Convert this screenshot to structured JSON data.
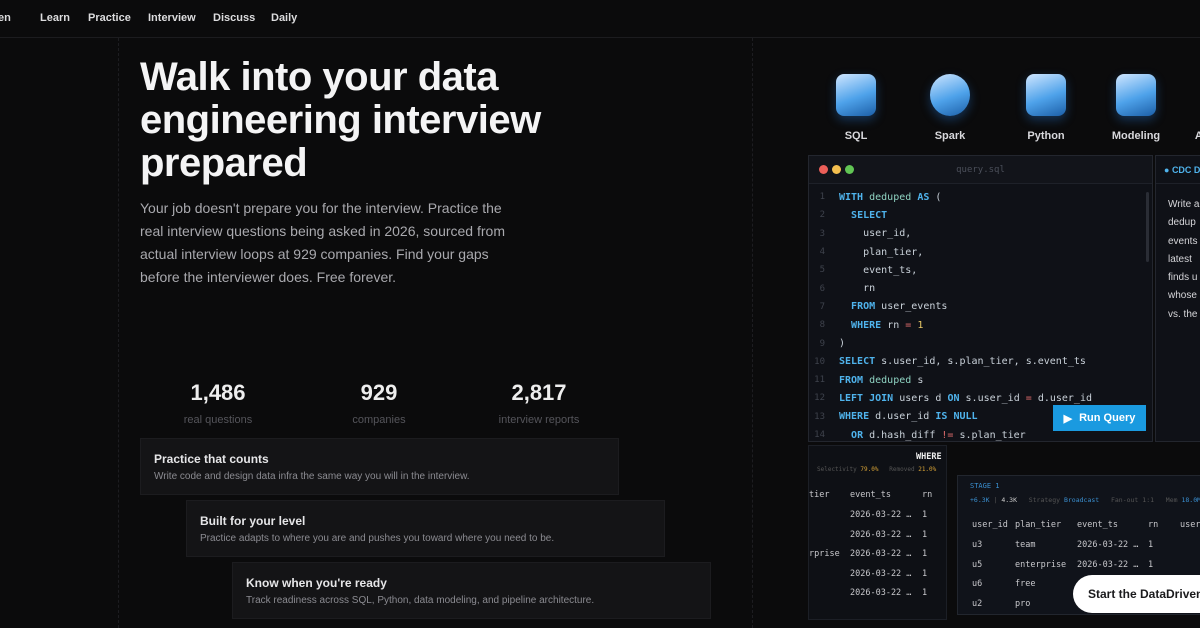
{
  "nav": {
    "brand_partial": "en",
    "items": [
      "Learn",
      "Practice",
      "Interview",
      "Discuss",
      "Daily"
    ]
  },
  "hero": {
    "title_lines": [
      "Walk into your data",
      "engineering interview",
      "prepared"
    ],
    "lead": "Your job doesn't prepare you for the interview. Practice the real interview questions being asked in 2026, sourced from actual interview loops at 929 companies. Find your gaps before the interviewer does. Free forever."
  },
  "stats": [
    {
      "value": "1,486",
      "label": "real questions"
    },
    {
      "value": "929",
      "label": "companies"
    },
    {
      "value": "2,817",
      "label": "interview reports"
    }
  ],
  "features": [
    {
      "title": "Practice that counts",
      "desc": "Write code and design data infra the same way you will in the interview."
    },
    {
      "title": "Built for your level",
      "desc": "Practice adapts to where you are and pushes you toward where you need to be."
    },
    {
      "title": "Know when you're ready",
      "desc": "Track readiness across SQL, Python, data modeling, and pipeline architecture."
    }
  ],
  "topics": [
    {
      "label": "SQL",
      "icon": "database-icon"
    },
    {
      "label": "Spark",
      "icon": "spark-icon"
    },
    {
      "label": "Python",
      "icon": "python-icon"
    },
    {
      "label": "Modeling",
      "icon": "modeling-icon"
    },
    {
      "label": "Ar",
      "icon": "architecture-icon"
    }
  ],
  "editor": {
    "filename": "query.sql",
    "run_label": "Run Query",
    "colors": {
      "close": "#ec5f59",
      "min": "#f4bf4f",
      "max": "#61c554",
      "accent": "#1a9ae0"
    },
    "lines": [
      "WITH deduped AS (",
      "  SELECT",
      "    user_id,",
      "    plan_tier,",
      "    event_ts,",
      "    rn",
      "  FROM user_events",
      "  WHERE rn = 1",
      ")",
      "SELECT s.user_id, s.plan_tier, s.event_ts",
      "FROM deduped s",
      "LEFT JOIN users d ON s.user_id = d.user_id",
      "WHERE d.user_id IS NULL",
      "  OR d.hash_diff != s.plan_tier"
    ]
  },
  "side_panel": {
    "title": "CDC D",
    "lines": [
      "Write a",
      "dedup",
      "events",
      "latest",
      "finds u",
      "whose",
      "vs. the"
    ]
  },
  "where_panel": {
    "title": "WHERE",
    "selectivity_label": "Selectivity",
    "selectivity": "79.0%",
    "removed_label": "Removed",
    "removed": "21.0%",
    "headers": [
      "tier",
      "event_ts",
      "rn"
    ],
    "rows": [
      [
        "",
        "2026-03-22 …",
        "1"
      ],
      [
        "",
        "2026-03-22 …",
        "1"
      ],
      [
        "rprise",
        "2026-03-22 …",
        "1"
      ],
      [
        "",
        "2026-03-22 …",
        "1"
      ],
      [
        "",
        "2026-03-22 …",
        "1"
      ]
    ]
  },
  "stage_panel": {
    "title": "STAGE 1",
    "rows_in": "+6.3K",
    "rows_out": "4.3K",
    "strategy_label": "Strategy",
    "strategy": "Broadcast",
    "fanout_label": "Fan-out",
    "fanout": "1:1",
    "mem_label": "Mem",
    "mem": "18.0M",
    "headers": [
      "user_id",
      "plan_tier",
      "event_ts",
      "rn",
      "user_"
    ],
    "rows": [
      [
        "u3",
        "team",
        "2026-03-22 …",
        "1"
      ],
      [
        "u5",
        "enterprise",
        "2026-03-22 …",
        "1"
      ],
      [
        "u6",
        "free",
        "",
        ""
      ],
      [
        "u2",
        "pro",
        "",
        ""
      ]
    ]
  },
  "cta": {
    "label": "Start the DataDriven"
  }
}
